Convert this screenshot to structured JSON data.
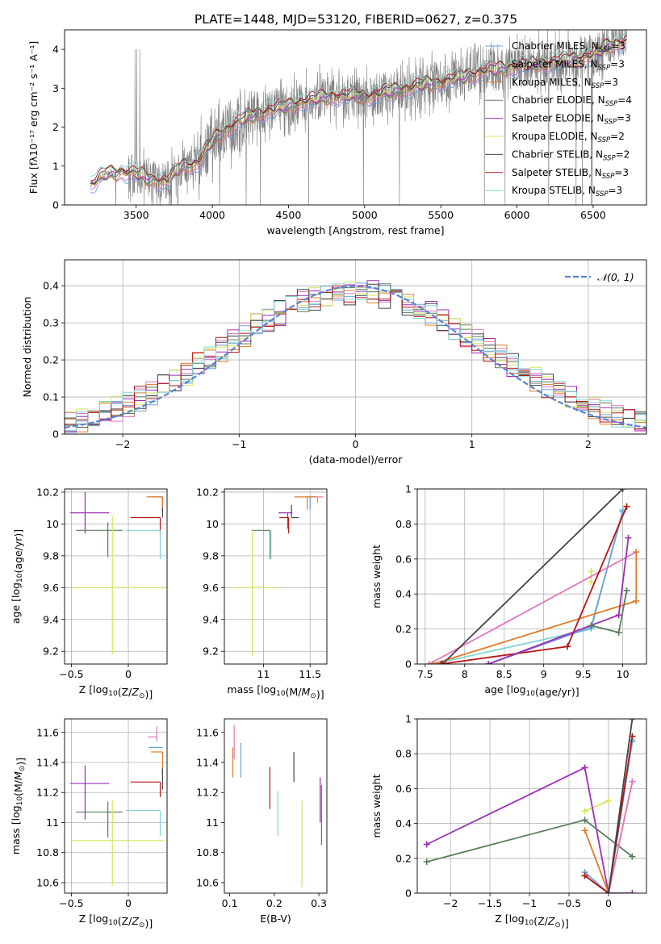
{
  "figure": {
    "title": "PLATE=1448, MJD=53120, FIBERID=0627, z=0.375"
  },
  "colors": {
    "chabrier_miles": "#6ea0d8",
    "salpeter_miles": "#e478bf",
    "kroupa_miles": "#e07b28",
    "chabrier_elodie": "#5a7e5a",
    "salpeter_elodie": "#9b2fb5",
    "kroupa_elodie": "#d6e65e",
    "chabrier_stelib": "#444444",
    "salpeter_stelib": "#b51515",
    "kroupa_stelib": "#82d4d4",
    "spectrum": "#808080",
    "normal": "#5b80d4",
    "grid": "#b0b0b0"
  },
  "chart_data": [
    {
      "id": "spectrum",
      "type": "line",
      "xlabel": "wavelength [Angstrom, rest frame]",
      "ylabel": "Flux [fλ10⁻¹⁷ erg cm⁻² s⁻¹ A⁻¹]",
      "xlim": [
        3030,
        6850
      ],
      "ylim": [
        0,
        4.5
      ],
      "xticks": [
        3500,
        4000,
        4500,
        5000,
        5500,
        6000,
        6500
      ],
      "yticks": [
        0,
        1,
        2,
        3,
        4
      ],
      "grid": false,
      "legend_position": "top-right",
      "legend": [
        {
          "key": "chabrier_miles",
          "label": "Chabrier MILES, N",
          "sub": "SSP",
          "suffix": "=3"
        },
        {
          "key": "salpeter_miles",
          "label": "Salpeter MILES, N",
          "sub": "SSP",
          "suffix": "=3"
        },
        {
          "key": "kroupa_miles",
          "label": "Kroupa MILES, N",
          "sub": "SSP",
          "suffix": "=3"
        },
        {
          "key": "chabrier_elodie",
          "label": "Chabrier ELODIE, N",
          "sub": "SSP",
          "suffix": "=4"
        },
        {
          "key": "salpeter_elodie",
          "label": "Salpeter ELODIE, N",
          "sub": "SSP",
          "suffix": "=3"
        },
        {
          "key": "kroupa_elodie",
          "label": "Kroupa ELODIE, N",
          "sub": "SSP",
          "suffix": "=2"
        },
        {
          "key": "chabrier_stelib",
          "label": "Chabrier STELIB, N",
          "sub": "SSP",
          "suffix": "=2"
        },
        {
          "key": "salpeter_stelib",
          "label": "Salpeter STELIB, N",
          "sub": "SSP",
          "suffix": "=3"
        },
        {
          "key": "kroupa_stelib",
          "label": "Kroupa STELIB, N",
          "sub": "SSP",
          "suffix": "=3"
        }
      ],
      "continuum": {
        "x": [
          3200,
          3300,
          3400,
          3500,
          3600,
          3700,
          3800,
          3900,
          4000,
          4100,
          4200,
          4300,
          4400,
          4500,
          4600,
          4700,
          4800,
          4900,
          5000,
          5100,
          5200,
          5300,
          5400,
          5500,
          5600,
          5700,
          5800,
          5900,
          6000,
          6100,
          6200,
          6300,
          6400,
          6500,
          6600,
          6700
        ],
        "y": [
          0.5,
          0.8,
          0.85,
          0.8,
          0.65,
          0.6,
          1.0,
          1.05,
          1.65,
          1.95,
          2.2,
          2.35,
          2.45,
          2.55,
          2.65,
          2.75,
          2.8,
          2.8,
          2.78,
          2.85,
          2.95,
          3.0,
          3.1,
          3.15,
          3.25,
          3.35,
          3.45,
          3.5,
          3.55,
          3.6,
          3.65,
          3.7,
          3.75,
          3.85,
          4.1,
          4.2
        ]
      }
    },
    {
      "id": "residuals",
      "type": "histogram",
      "xlabel": "(data-model)/error",
      "ylabel": "Normed distribution",
      "xlim": [
        -2.5,
        2.5
      ],
      "ylim": [
        0,
        0.47
      ],
      "xticks": [
        -2,
        -1,
        0,
        1,
        2
      ],
      "yticks": [
        0.0,
        0.1,
        0.2,
        0.3,
        0.4
      ],
      "grid": true,
      "legend_position": "top-right",
      "reference_label": "𝒩(0, 1)",
      "bin_width": 0.1
    },
    {
      "id": "age_vs_Z",
      "type": "errorbar",
      "xlabel": "Z [log10(Z/Z⊙)]",
      "ylabel": "age  [log10(age/yr)]",
      "xlim": [
        -0.56,
        0.34
      ],
      "ylim": [
        9.12,
        10.22
      ],
      "xticks": [
        -0.5,
        0.0
      ],
      "yticks": [
        9.2,
        9.4,
        9.6,
        9.8,
        10.0,
        10.2
      ],
      "grid": true,
      "points": [
        {
          "key": "chabrier_miles",
          "x": 0.3,
          "y": 10.17,
          "xerr": [
            0.12,
            0.0
          ],
          "yerr": [
            0.09,
            0.0
          ]
        },
        {
          "key": "salpeter_miles",
          "x": 0.3,
          "y": 10.17,
          "xerr": [
            0.1,
            0.0
          ],
          "yerr": [
            0.07,
            0.0
          ]
        },
        {
          "key": "kroupa_miles",
          "x": 0.3,
          "y": 10.17,
          "xerr": [
            0.14,
            0.0
          ],
          "yerr": [
            0.08,
            0.0
          ]
        },
        {
          "key": "chabrier_elodie",
          "x": -0.18,
          "y": 9.96,
          "xerr": [
            0.28,
            0.13
          ],
          "yerr": [
            0.17,
            0.05
          ]
        },
        {
          "key": "salpeter_elodie",
          "x": -0.38,
          "y": 10.07,
          "xerr": [
            0.13,
            0.21
          ],
          "yerr": [
            0.13,
            0.13
          ]
        },
        {
          "key": "kroupa_elodie",
          "x": -0.14,
          "y": 9.6,
          "xerr": [
            0.36,
            0.46
          ],
          "yerr": [
            0.42,
            0.45
          ]
        },
        {
          "key": "chabrier_stelib",
          "x": 0.3,
          "y": 10.04,
          "xerr": [
            0.0,
            0.0
          ],
          "yerr": [
            0.0,
            0.06
          ]
        },
        {
          "key": "salpeter_stelib",
          "x": 0.28,
          "y": 10.04,
          "xerr": [
            0.26,
            0.0
          ],
          "yerr": [
            0.1,
            0.0
          ]
        },
        {
          "key": "kroupa_stelib",
          "x": 0.28,
          "y": 9.96,
          "xerr": [
            0.3,
            0.0
          ],
          "yerr": [
            0.18,
            0.0
          ]
        }
      ]
    },
    {
      "id": "age_vs_mass",
      "type": "errorbar",
      "xlabel": "mass [log10(M/M⊙)]",
      "ylabel": "",
      "xlim": [
        10.58,
        11.68
      ],
      "ylim": [
        9.12,
        10.22
      ],
      "xticks": [
        11.0,
        11.5
      ],
      "yticks": [
        9.2,
        9.4,
        9.6,
        9.8,
        10.0,
        10.2
      ],
      "grid": true,
      "points": [
        {
          "key": "chabrier_miles",
          "x": 11.5,
          "y": 10.17,
          "xerr": [
            0.05,
            0.05
          ],
          "yerr": [
            0.08,
            0.0
          ]
        },
        {
          "key": "salpeter_miles",
          "x": 11.58,
          "y": 10.17,
          "xerr": [
            0.06,
            0.06
          ],
          "yerr": [
            0.04,
            0.0
          ]
        },
        {
          "key": "kroupa_miles",
          "x": 11.47,
          "y": 10.17,
          "xerr": [
            0.14,
            0.1
          ],
          "yerr": [
            0.08,
            0.0
          ]
        },
        {
          "key": "chabrier_elodie",
          "x": 11.07,
          "y": 9.96,
          "xerr": [
            0.2,
            0.0
          ],
          "yerr": [
            0.18,
            0.0
          ]
        },
        {
          "key": "salpeter_elodie",
          "x": 11.26,
          "y": 10.07,
          "xerr": [
            0.1,
            0.05
          ],
          "yerr": [
            0.1,
            0.0
          ]
        },
        {
          "key": "kroupa_elodie",
          "x": 10.88,
          "y": 9.6,
          "xerr": [
            0.25,
            0.27
          ],
          "yerr": [
            0.43,
            0.36
          ]
        },
        {
          "key": "chabrier_stelib",
          "x": 11.3,
          "y": 10.04,
          "xerr": [
            0.0,
            0.08
          ],
          "yerr": [
            0.0,
            0.08
          ]
        },
        {
          "key": "salpeter_stelib",
          "x": 11.27,
          "y": 10.04,
          "xerr": [
            0.1,
            0.0
          ],
          "yerr": [
            0.1,
            0.0
          ]
        },
        {
          "key": "kroupa_stelib",
          "x": 11.08,
          "y": 9.96,
          "xerr": [
            0.0,
            0.0
          ],
          "yerr": [
            0.18,
            0.0
          ]
        }
      ]
    },
    {
      "id": "weight_vs_age",
      "type": "line",
      "xlabel": "age  [log10(age/yr)]",
      "ylabel": "mass weight",
      "xlim": [
        7.4,
        10.3
      ],
      "ylim": [
        0,
        1.0
      ],
      "xticks": [
        7.5,
        8.0,
        8.5,
        9.0,
        9.5,
        10.0
      ],
      "yticks": [
        0.0,
        0.2,
        0.4,
        0.6,
        0.8,
        1.0
      ],
      "grid": true,
      "series": [
        {
          "key": "kroupa_elodie",
          "x": [
            9.6,
            9.6
          ],
          "y": [
            0.47,
            0.53
          ]
        },
        {
          "key": "kroupa_stelib",
          "x": [
            7.6,
            9.6,
            10.0
          ],
          "y": [
            0.0,
            0.2,
            0.88
          ]
        },
        {
          "key": "chabrier_miles",
          "x": [
            8.3,
            9.6,
            10.0
          ],
          "y": [
            0.0,
            0.21,
            0.87
          ]
        },
        {
          "key": "salpeter_miles",
          "x": [
            7.55,
            10.17
          ],
          "y": [
            0.0,
            0.64
          ]
        },
        {
          "key": "kroupa_miles",
          "x": [
            7.6,
            10.17,
            10.17
          ],
          "y": [
            0.0,
            0.36,
            0.64
          ]
        },
        {
          "key": "chabrier_stelib",
          "x": [
            7.72,
            10.0
          ],
          "y": [
            0.0,
            1.0
          ]
        },
        {
          "key": "salpeter_stelib",
          "x": [
            7.7,
            9.3,
            10.05
          ],
          "y": [
            0.0,
            0.1,
            0.9
          ]
        },
        {
          "key": "salpeter_elodie",
          "x": [
            8.3,
            9.95,
            10.07
          ],
          "y": [
            0.0,
            0.28,
            0.72
          ]
        },
        {
          "key": "chabrier_elodie",
          "x": [
            9.6,
            9.95,
            10.05
          ],
          "y": [
            0.22,
            0.18,
            0.42
          ]
        }
      ]
    },
    {
      "id": "mass_vs_Z",
      "type": "errorbar",
      "xlabel": "Z [log10(Z/Z⊙)]",
      "ylabel": "mass [log10(M/M⊙)]",
      "xlim": [
        -0.56,
        0.34
      ],
      "ylim": [
        10.53,
        11.69
      ],
      "xticks": [
        -0.5,
        0.0
      ],
      "yticks": [
        10.6,
        10.8,
        11.0,
        11.2,
        11.4,
        11.6
      ],
      "grid": true,
      "points": [
        {
          "key": "chabrier_miles",
          "x": 0.3,
          "y": 11.5,
          "xerr": [
            0.12,
            0.0
          ],
          "yerr": [
            0.0,
            0.0
          ]
        },
        {
          "key": "salpeter_miles",
          "x": 0.25,
          "y": 11.57,
          "xerr": [
            0.08,
            0.0
          ],
          "yerr": [
            0.03,
            0.07
          ]
        },
        {
          "key": "kroupa_miles",
          "x": 0.3,
          "y": 11.47,
          "xerr": [
            0.1,
            0.0
          ],
          "yerr": [
            0.15,
            0.0
          ]
        },
        {
          "key": "chabrier_elodie",
          "x": -0.18,
          "y": 11.07,
          "xerr": [
            0.28,
            0.13
          ],
          "yerr": [
            0.17,
            0.07
          ]
        },
        {
          "key": "salpeter_elodie",
          "x": -0.38,
          "y": 11.26,
          "xerr": [
            0.13,
            0.21
          ],
          "yerr": [
            0.24,
            0.12
          ]
        },
        {
          "key": "kroupa_elodie",
          "x": -0.14,
          "y": 10.88,
          "xerr": [
            0.36,
            0.46
          ],
          "yerr": [
            0.3,
            0.27
          ]
        },
        {
          "key": "chabrier_stelib",
          "x": 0.3,
          "y": 11.3,
          "xerr": [
            0.0,
            0.0
          ],
          "yerr": [
            0.08,
            0.06
          ]
        },
        {
          "key": "salpeter_stelib",
          "x": 0.28,
          "y": 11.27,
          "xerr": [
            0.26,
            0.0
          ],
          "yerr": [
            0.1,
            0.0
          ]
        },
        {
          "key": "kroupa_stelib",
          "x": 0.28,
          "y": 11.08,
          "xerr": [
            0.3,
            0.0
          ],
          "yerr": [
            0.17,
            0.0
          ]
        }
      ]
    },
    {
      "id": "mass_vs_ebv",
      "type": "errorbar",
      "xlabel": "E(B-V)",
      "ylabel": "",
      "xlim": [
        0.088,
        0.318
      ],
      "ylim": [
        10.53,
        11.69
      ],
      "xticks": [
        0.1,
        0.2,
        0.3
      ],
      "yticks": [
        10.6,
        10.8,
        11.0,
        11.2,
        11.4,
        11.6
      ],
      "grid": false,
      "points": [
        {
          "key": "chabrier_miles",
          "x": 0.125,
          "y": 11.45,
          "xerr": [
            0,
            0
          ],
          "yerr": [
            0.15,
            0.08
          ]
        },
        {
          "key": "salpeter_miles",
          "x": 0.11,
          "y": 11.5,
          "xerr": [
            0,
            0
          ],
          "yerr": [
            0.08,
            0.15
          ]
        },
        {
          "key": "kroupa_miles",
          "x": 0.107,
          "y": 11.4,
          "xerr": [
            0,
            0
          ],
          "yerr": [
            0.1,
            0.1
          ]
        },
        {
          "key": "chabrier_elodie",
          "x": 0.306,
          "y": 11.05,
          "xerr": [
            0,
            0
          ],
          "yerr": [
            0.2,
            0.2
          ]
        },
        {
          "key": "salpeter_elodie",
          "x": 0.303,
          "y": 11.15,
          "xerr": [
            0,
            0
          ],
          "yerr": [
            0.15,
            0.15
          ]
        },
        {
          "key": "kroupa_elodie",
          "x": 0.262,
          "y": 10.85,
          "xerr": [
            0,
            0
          ],
          "yerr": [
            0.28,
            0.3
          ]
        },
        {
          "key": "chabrier_stelib",
          "x": 0.244,
          "y": 11.37,
          "xerr": [
            0,
            0
          ],
          "yerr": [
            0.1,
            0.1
          ]
        },
        {
          "key": "salpeter_stelib",
          "x": 0.19,
          "y": 11.23,
          "xerr": [
            0,
            0
          ],
          "yerr": [
            0.14,
            0.14
          ]
        },
        {
          "key": "kroupa_stelib",
          "x": 0.208,
          "y": 11.06,
          "xerr": [
            0,
            0
          ],
          "yerr": [
            0.15,
            0.15
          ]
        }
      ]
    },
    {
      "id": "weight_vs_Z",
      "type": "line",
      "xlabel": "Z [log10(Z/Z⊙)]",
      "ylabel": "mass weight",
      "xlim": [
        -2.42,
        0.48
      ],
      "ylim": [
        0,
        1.0
      ],
      "xticks": [
        -2.0,
        -1.5,
        -1.0,
        -0.5,
        0.0
      ],
      "yticks": [
        0.0,
        0.2,
        0.4,
        0.6,
        0.8,
        1.0
      ],
      "grid": true,
      "series": [
        {
          "key": "kroupa_elodie",
          "x": [
            -0.3,
            0.0
          ],
          "y": [
            0.47,
            0.53
          ]
        },
        {
          "key": "salpeter_elodie",
          "x": [
            -2.3,
            -0.3,
            0.0,
            0.3
          ],
          "y": [
            0.28,
            0.72,
            0.0,
            0.0
          ]
        },
        {
          "key": "chabrier_elodie",
          "x": [
            -2.3,
            -0.3,
            0.3
          ],
          "y": [
            0.18,
            0.42,
            0.21
          ]
        },
        {
          "key": "kroupa_miles",
          "x": [
            -0.3,
            0.0,
            0.3
          ],
          "y": [
            0.36,
            0.0,
            0.64
          ]
        },
        {
          "key": "salpeter_miles",
          "x": [
            0.0,
            0.3
          ],
          "y": [
            0.0,
            0.64
          ]
        },
        {
          "key": "kroupa_stelib",
          "x": [
            -0.3,
            0.0,
            0.3
          ],
          "y": [
            0.1,
            0.0,
            0.88
          ]
        },
        {
          "key": "chabrier_miles",
          "x": [
            -0.3,
            0.0,
            0.3
          ],
          "y": [
            0.12,
            0.0,
            0.87
          ]
        },
        {
          "key": "salpeter_stelib",
          "x": [
            -0.3,
            0.0,
            0.3
          ],
          "y": [
            0.1,
            0.0,
            0.9
          ]
        },
        {
          "key": "chabrier_stelib",
          "x": [
            0.0,
            0.3
          ],
          "y": [
            0.0,
            1.0
          ]
        }
      ]
    }
  ]
}
